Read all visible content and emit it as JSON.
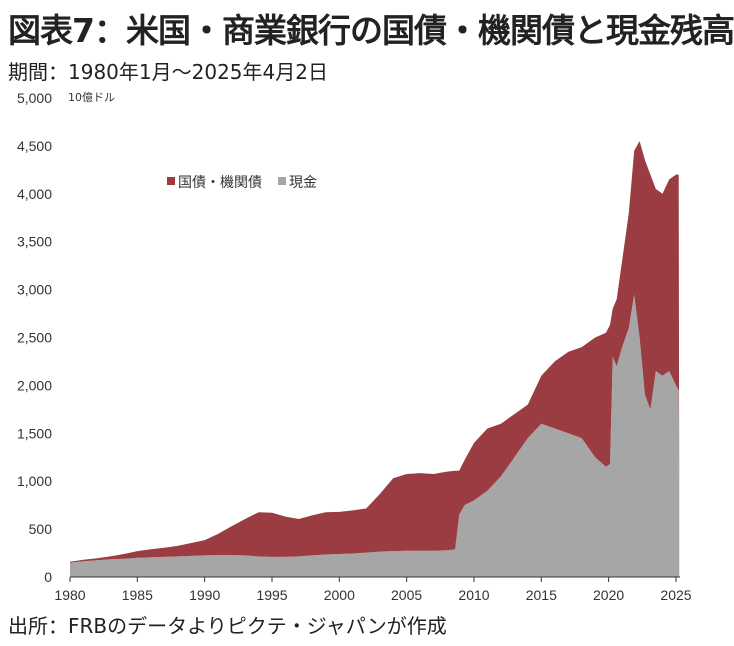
{
  "title": "図表7：米国・商業銀行の国債・機関債と現金残高",
  "subtitle": "期間：1980年1月～2025年4月2日",
  "source": "出所：FRBのデータよりピクテ・ジャパンが作成",
  "chart_data": {
    "type": "area",
    "unit_label": "10億ドル",
    "ylim": [
      0,
      5000
    ],
    "y_ticks": [
      0,
      500,
      1000,
      1500,
      2000,
      2500,
      3000,
      3500,
      4000,
      4500,
      5000
    ],
    "y_tick_labels": [
      "0",
      "500",
      "1,000",
      "1,500",
      "2,000",
      "2,500",
      "3,000",
      "3,500",
      "4,000",
      "4,500",
      "5,000"
    ],
    "xlim": [
      1980,
      2025.3
    ],
    "x_ticks": [
      1980,
      1985,
      1990,
      1995,
      2000,
      2005,
      2010,
      2015,
      2020,
      2025
    ],
    "x_tick_labels": [
      "1980",
      "1985",
      "1990",
      "1995",
      "2000",
      "2005",
      "2010",
      "2015",
      "2020",
      "2025"
    ],
    "stacked": true,
    "legend_position": "top-left",
    "grid": false,
    "x": [
      1980,
      1981,
      1982,
      1983,
      1984,
      1985,
      1986,
      1987,
      1988,
      1989,
      1990,
      1991,
      1992,
      1993,
      1994,
      1995,
      1996,
      1997,
      1998,
      1999,
      2000,
      2001,
      2002,
      2003,
      2004,
      2005,
      2006,
      2007,
      2008,
      2008.6,
      2008.9,
      2009.3,
      2010,
      2011,
      2012,
      2013,
      2014,
      2015,
      2016,
      2017,
      2018,
      2019,
      2019.8,
      2020.1,
      2020.3,
      2020.6,
      2021,
      2021.5,
      2021.9,
      2022.3,
      2022.7,
      2023.1,
      2023.5,
      2024,
      2024.5,
      2025,
      2025.2,
      2025.25
    ],
    "series": [
      {
        "name": "現金",
        "color": "#a6a6a6",
        "values": [
          150,
          165,
          175,
          185,
          190,
          200,
          205,
          210,
          215,
          220,
          225,
          230,
          230,
          225,
          215,
          210,
          210,
          215,
          225,
          235,
          240,
          245,
          255,
          265,
          270,
          275,
          275,
          275,
          280,
          290,
          650,
          750,
          800,
          900,
          1050,
          1250,
          1450,
          1600,
          1550,
          1500,
          1450,
          1250,
          1150,
          1180,
          2300,
          2200,
          2400,
          2600,
          2950,
          2500,
          1900,
          1750,
          2150,
          2100,
          2150,
          2000,
          1950,
          400
        ]
      },
      {
        "name": "国債・機関債",
        "color": "#9b3b42",
        "values": [
          10,
          15,
          20,
          30,
          50,
          70,
          85,
          95,
          110,
          135,
          160,
          220,
          300,
          380,
          460,
          460,
          420,
          390,
          420,
          440,
          440,
          450,
          460,
          600,
          760,
          800,
          810,
          800,
          820,
          820,
          460,
          470,
          600,
          650,
          550,
          450,
          350,
          500,
          700,
          850,
          950,
          1250,
          1400,
          1450,
          500,
          700,
          900,
          1200,
          1500,
          2050,
          2450,
          2450,
          1900,
          1900,
          2000,
          2200,
          2250,
          0
        ]
      }
    ]
  }
}
